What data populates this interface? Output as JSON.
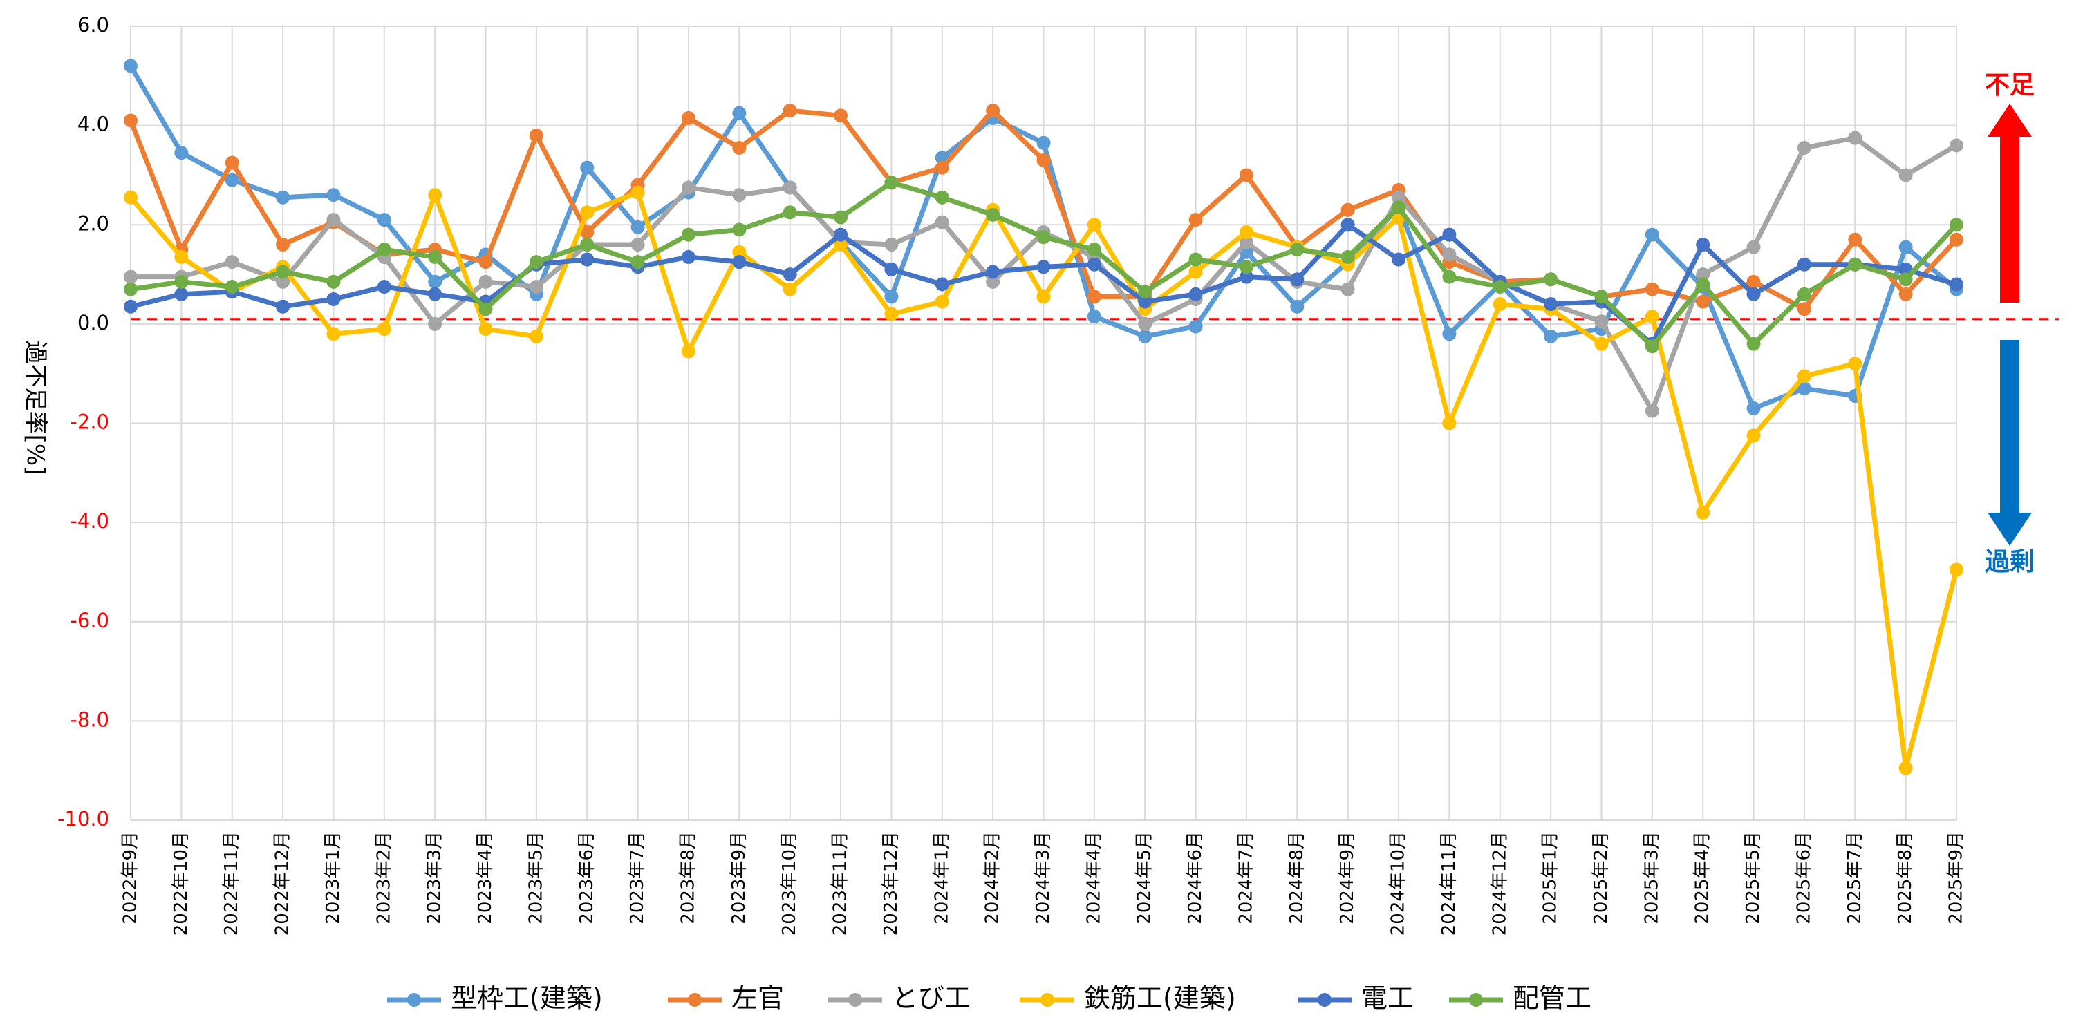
{
  "chart_data": {
    "type": "line",
    "ylabel": "過不足率[%]",
    "ylim": [
      -10,
      6
    ],
    "ytick_step": 2,
    "grid": true,
    "reference_line": {
      "y": 0.1,
      "color": "#ff0000",
      "style": "dashed"
    },
    "negative_tick_color": "#ff0000",
    "categories": [
      "2022年9月",
      "2022年10月",
      "2022年11月",
      "2022年12月",
      "2023年1月",
      "2023年2月",
      "2023年3月",
      "2023年4月",
      "2023年5月",
      "2023年6月",
      "2023年7月",
      "2023年8月",
      "2023年9月",
      "2023年10月",
      "2023年11月",
      "2023年12月",
      "2024年1月",
      "2024年2月",
      "2024年3月",
      "2024年4月",
      "2024年5月",
      "2024年6月",
      "2024年7月",
      "2024年8月",
      "2024年9月",
      "2024年10月",
      "2024年11月",
      "2024年12月",
      "2025年1月",
      "2025年2月",
      "2025年3月",
      "2025年4月",
      "2025年5月",
      "2025年6月",
      "2025年7月",
      "2025年8月",
      "2025年9月"
    ],
    "series": [
      {
        "name": "型枠工(建築)",
        "color": "#5b9bd5",
        "values": [
          5.2,
          3.45,
          2.9,
          2.55,
          2.6,
          2.1,
          0.85,
          1.4,
          0.6,
          3.15,
          1.95,
          2.65,
          4.25,
          2.75,
          1.65,
          0.55,
          3.35,
          4.15,
          3.65,
          0.15,
          -0.25,
          -0.05,
          1.45,
          0.35,
          1.25,
          2.35,
          -0.2,
          0.8,
          -0.25,
          -0.1,
          1.8,
          0.75,
          -1.7,
          -1.3,
          -1.45,
          1.55,
          0.7
        ]
      },
      {
        "name": "左官",
        "color": "#ed7d31",
        "values": [
          4.1,
          1.5,
          3.25,
          1.6,
          2.05,
          1.4,
          1.5,
          1.25,
          3.8,
          1.85,
          2.8,
          4.15,
          3.55,
          4.3,
          4.2,
          2.85,
          3.15,
          4.3,
          3.3,
          0.55,
          0.55,
          2.1,
          3.0,
          1.55,
          2.3,
          2.7,
          1.25,
          0.85,
          0.9,
          0.55,
          0.7,
          0.45,
          0.85,
          0.3,
          1.7,
          0.6,
          1.7
        ]
      },
      {
        "name": "とび工",
        "color": "#a5a5a5",
        "values": [
          0.95,
          0.95,
          1.25,
          0.85,
          2.1,
          1.35,
          0.0,
          0.85,
          0.75,
          1.6,
          1.6,
          2.75,
          2.6,
          2.75,
          1.65,
          1.6,
          2.05,
          0.85,
          1.85,
          1.35,
          0.0,
          0.5,
          1.65,
          0.85,
          0.7,
          2.55,
          1.4,
          0.85,
          0.4,
          0.05,
          -1.75,
          1.0,
          1.55,
          3.55,
          3.75,
          3.0,
          3.6
        ]
      },
      {
        "name": "鉄筋工(建築)",
        "color": "#ffc000",
        "values": [
          2.55,
          1.35,
          0.65,
          1.15,
          -0.2,
          -0.1,
          2.6,
          -0.1,
          -0.25,
          2.25,
          2.65,
          -0.55,
          1.45,
          0.7,
          1.6,
          0.2,
          0.45,
          2.3,
          0.55,
          2.0,
          0.3,
          1.05,
          1.85,
          1.55,
          1.2,
          2.15,
          -2.0,
          0.4,
          0.3,
          -0.4,
          0.15,
          -3.8,
          -2.25,
          -1.05,
          -0.8,
          -8.95,
          -4.95
        ]
      },
      {
        "name": "電工",
        "color": "#4472c4",
        "values": [
          0.35,
          0.6,
          0.65,
          0.35,
          0.5,
          0.75,
          0.6,
          0.45,
          1.2,
          1.3,
          1.15,
          1.35,
          1.25,
          1.0,
          1.8,
          1.1,
          0.8,
          1.05,
          1.15,
          1.2,
          0.45,
          0.6,
          0.95,
          0.9,
          2.0,
          1.3,
          1.8,
          0.85,
          0.4,
          0.45,
          -0.4,
          1.6,
          0.6,
          1.2,
          1.2,
          1.1,
          0.8
        ]
      },
      {
        "name": "配管工",
        "color": "#70ad47",
        "values": [
          0.7,
          0.85,
          0.75,
          1.05,
          0.85,
          1.5,
          1.35,
          0.3,
          1.25,
          1.6,
          1.25,
          1.8,
          1.9,
          2.25,
          2.15,
          2.85,
          2.55,
          2.2,
          1.75,
          1.5,
          0.65,
          1.3,
          1.15,
          1.5,
          1.35,
          2.35,
          0.95,
          0.75,
          0.9,
          0.55,
          -0.45,
          0.8,
          -0.4,
          0.6,
          1.2,
          0.9,
          2.0
        ]
      }
    ],
    "legend_position": "bottom"
  },
  "annotations": {
    "shortage": {
      "label": "不足",
      "color": "#ff0000"
    },
    "surplus": {
      "label": "過剰",
      "color": "#0070c0"
    }
  }
}
